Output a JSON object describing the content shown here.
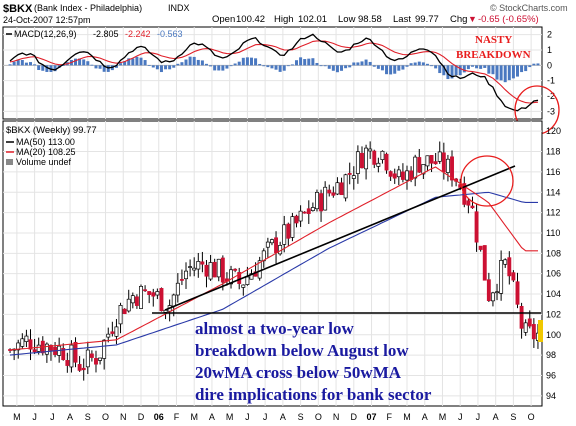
{
  "header": {
    "symbol": "$BKX",
    "name": "(Bank Index - Philadelphia)",
    "exchange": "INDX",
    "date": "24-Oct-2007 12:57pm",
    "watermark": "© StockCharts.com",
    "quote": {
      "open_label": "Open",
      "open": "100.42",
      "high_label": "High",
      "high": "102.01",
      "low_label": "Low",
      "low": "98.58",
      "last_label": "Last",
      "last": "99.77",
      "chg_label": "Chg",
      "chg": "-0.65 (-0.65%)",
      "chg_arrow": "▼"
    }
  },
  "macd_panel": {
    "legend_label": "MACD(12,26,9)",
    "macd_value": "-2.805",
    "signal_value": "-2.242",
    "hist_value": "-0.563",
    "annotation": [
      "NASTY",
      "BREAKDOWN"
    ],
    "y_ticks": [
      "2",
      "1",
      "0",
      "-1",
      "-2",
      "-3"
    ]
  },
  "price_panel": {
    "legend_title": "$BKX (Weekly) 99.77",
    "ma50_label": "MA(50) 113.00",
    "ma20_label": "MA(20) 108.25",
    "volume_label": "Volume undef",
    "y_ticks": [
      "120",
      "118",
      "116",
      "114",
      "112",
      "110",
      "108",
      "106",
      "104",
      "102",
      "100",
      "98",
      "96",
      "94"
    ],
    "annotation": [
      "almost a two-year low",
      "breakdown below August low",
      "20wMA cross below 50wMA",
      "dire implications for bank sector"
    ]
  },
  "x_axis": {
    "labels": [
      "M",
      "J",
      "J",
      "A",
      "S",
      "O",
      "N",
      "D",
      "06",
      "F",
      "M",
      "A",
      "M",
      "J",
      "J",
      "A",
      "S",
      "O",
      "N",
      "D",
      "07",
      "F",
      "M",
      "A",
      "M",
      "J",
      "J",
      "A",
      "S",
      "O"
    ]
  },
  "colors": {
    "up_candle": "#ffffff",
    "down_candle": "#cc1133",
    "ma50": "#2a3aa8",
    "ma20": "#e0202a",
    "trendline": "#000000",
    "annotation_text": "#1a1aa0",
    "nasty_text": "#e81c1c",
    "circle": "#e81c1c",
    "histogram": "#4a78c0",
    "last_marker": "#f0c800"
  },
  "chart_data": {
    "type": "candlestick",
    "title": "$BKX (Bank Index - Philadelphia) INDX",
    "frequency": "weekly",
    "x_range": [
      "May 2005",
      "Oct 2007"
    ],
    "ylim": [
      93,
      121
    ],
    "macd_ylim": [
      -3.5,
      2.5
    ],
    "series": [
      {
        "name": "price_close_approx",
        "x": [
          "2005-05",
          "2005-06",
          "2005-07",
          "2005-08",
          "2005-09",
          "2005-10",
          "2005-11",
          "2005-12",
          "2006-01",
          "2006-02",
          "2006-03",
          "2006-04",
          "2006-05",
          "2006-06",
          "2006-07",
          "2006-08",
          "2006-09",
          "2006-10",
          "2006-11",
          "2006-12",
          "2007-01",
          "2007-02",
          "2007-03",
          "2007-04",
          "2007-05",
          "2007-06",
          "2007-07",
          "2007-08",
          "2007-09",
          "2007-10"
        ],
        "values": [
          98.5,
          99.5,
          99,
          98.5,
          97,
          98,
          102,
          104,
          104,
          103,
          106.5,
          107,
          106,
          105,
          107,
          109,
          110.5,
          112.5,
          114,
          115.5,
          118,
          118,
          115,
          117,
          117,
          116,
          113,
          104,
          107,
          100
        ]
      },
      {
        "name": "MA(50)",
        "x": [
          "2005-05",
          "2005-11",
          "2006-05",
          "2006-11",
          "2007-05",
          "2007-08",
          "2007-10"
        ],
        "values": [
          98,
          99,
          102.5,
          108.5,
          113.5,
          114,
          113
        ]
      },
      {
        "name": "MA(20)",
        "x": [
          "2005-05",
          "2005-11",
          "2006-05",
          "2006-11",
          "2007-05",
          "2007-08",
          "2007-10"
        ],
        "values": [
          98.5,
          99.5,
          105,
          111,
          116.5,
          113,
          108.25
        ]
      },
      {
        "name": "MACD(12,26,9)",
        "x": [
          "2005-05",
          "2005-11",
          "2006-05",
          "2006-11",
          "2007-05",
          "2007-08",
          "2007-10"
        ],
        "values": [
          0.2,
          0.5,
          1.0,
          1.5,
          0.5,
          -1.5,
          -2.805
        ]
      }
    ]
  }
}
